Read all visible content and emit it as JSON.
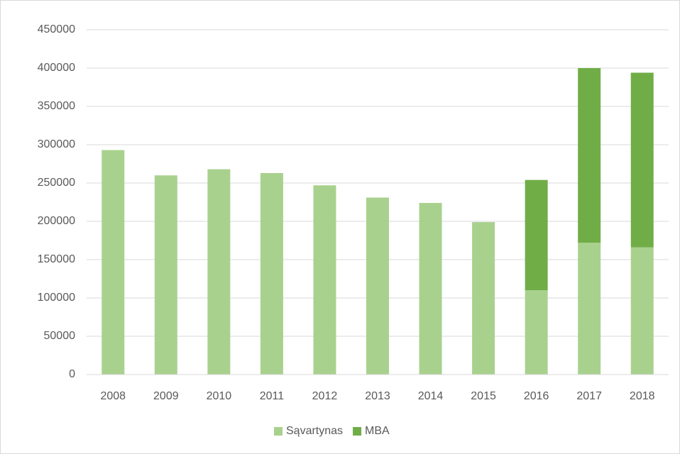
{
  "chart_data": {
    "type": "stacked_bar",
    "categories": [
      "2008",
      "2009",
      "2010",
      "2011",
      "2012",
      "2013",
      "2014",
      "2015",
      "2016",
      "2017",
      "2018"
    ],
    "series": [
      {
        "name": "Sąvartynas",
        "color": "#a9d18e",
        "values": [
          293000,
          260000,
          268000,
          263000,
          247000,
          231000,
          224000,
          199000,
          110000,
          172000,
          166000
        ]
      },
      {
        "name": "MBA",
        "color": "#70ad47",
        "values": [
          null,
          null,
          null,
          null,
          null,
          null,
          null,
          null,
          144000,
          228000,
          228000
        ]
      }
    ],
    "ylim": [
      0,
      450000
    ],
    "yticks": [
      0,
      50000,
      100000,
      150000,
      200000,
      250000,
      300000,
      350000,
      400000,
      450000
    ],
    "grid": true,
    "legend": "bottom"
  }
}
